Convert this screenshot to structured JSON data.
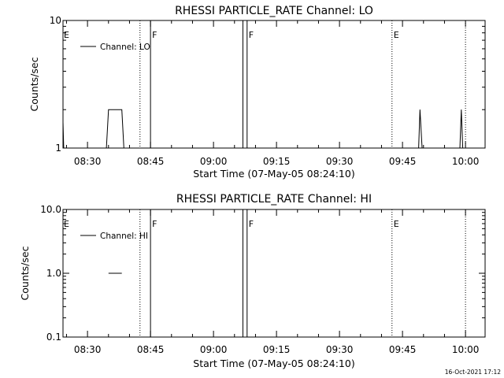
{
  "chart_data": [
    {
      "type": "line",
      "title": "RHESSI PARTICLE_RATE Channel: LO",
      "xlabel": "Start Time (07-May-05 08:24:10)",
      "ylabel": "Counts/sec",
      "y_scale": "log",
      "ylim": [
        1,
        10
      ],
      "xlim": [
        "08:24:10",
        "10:04:40"
      ],
      "yticks": [
        {
          "value": 1,
          "label": "1"
        },
        {
          "value": 10,
          "label": "10"
        }
      ],
      "xticks": [
        {
          "value": "08:30",
          "label": "08:30"
        },
        {
          "value": "08:45",
          "label": "08:45"
        },
        {
          "value": "09:00",
          "label": "09:00"
        },
        {
          "value": "09:15",
          "label": "09:15"
        },
        {
          "value": "09:30",
          "label": "09:30"
        },
        {
          "value": "09:45",
          "label": "09:45"
        },
        {
          "value": "10:00",
          "label": "10:00"
        }
      ],
      "legend": {
        "placement": "top-left",
        "entries": [
          "Channel: LO"
        ]
      },
      "series": [
        {
          "name": "Channel: LO",
          "segments": [
            [
              [
                "08:24:10",
                1.6
              ],
              [
                "08:24:20",
                1
              ]
            ],
            [
              [
                "08:34:30",
                1
              ],
              [
                "08:35:00",
                2
              ],
              [
                "08:38:10",
                2
              ],
              [
                "08:38:40",
                1
              ]
            ],
            [
              [
                "09:48:50",
                1
              ],
              [
                "09:49:10",
                2
              ],
              [
                "09:49:40",
                1
              ]
            ],
            [
              [
                "09:58:40",
                1
              ],
              [
                "09:59:00",
                2
              ],
              [
                "09:59:20",
                1
              ]
            ]
          ]
        }
      ],
      "flag_lines": [
        {
          "time": "08:42:30",
          "style": "dotted",
          "label": ""
        },
        {
          "time": "08:45:00",
          "style": "solid",
          "label": "F"
        },
        {
          "time": "09:07:00",
          "style": "solid",
          "label": ""
        },
        {
          "time": "09:08:00",
          "style": "solid",
          "label": "F"
        },
        {
          "time": "09:42:30",
          "style": "dotted",
          "label": "E"
        },
        {
          "time": "10:00:00",
          "style": "dotted",
          "label": ""
        }
      ],
      "start_flag": "E",
      "grid": false
    },
    {
      "type": "line",
      "title": "RHESSI PARTICLE_RATE Channel: HI",
      "xlabel": "Start Time (07-May-05 08:24:10)",
      "ylabel": "Counts/sec",
      "y_scale": "log",
      "ylim": [
        0.1,
        10
      ],
      "xlim": [
        "08:24:10",
        "10:04:40"
      ],
      "yticks": [
        {
          "value": 0.1,
          "label": "0.1"
        },
        {
          "value": 1,
          "label": "1.0"
        },
        {
          "value": 10,
          "label": "10.0"
        }
      ],
      "xticks": [
        {
          "value": "08:30",
          "label": "08:30"
        },
        {
          "value": "08:45",
          "label": "08:45"
        },
        {
          "value": "09:00",
          "label": "09:00"
        },
        {
          "value": "09:15",
          "label": "09:15"
        },
        {
          "value": "09:30",
          "label": "09:30"
        },
        {
          "value": "09:45",
          "label": "09:45"
        },
        {
          "value": "10:00",
          "label": "10:00"
        }
      ],
      "legend": {
        "placement": "top-left",
        "entries": [
          "Channel: HI"
        ]
      },
      "series": [
        {
          "name": "Channel: HI",
          "segments": [
            [
              [
                "08:35:00",
                1
              ],
              [
                "08:38:10",
                1
              ]
            ]
          ]
        }
      ],
      "flag_lines": [
        {
          "time": "08:42:30",
          "style": "dotted",
          "label": ""
        },
        {
          "time": "08:45:00",
          "style": "solid",
          "label": "F"
        },
        {
          "time": "09:07:00",
          "style": "solid",
          "label": ""
        },
        {
          "time": "09:08:00",
          "style": "solid",
          "label": "F"
        },
        {
          "time": "09:42:30",
          "style": "dotted",
          "label": "E"
        },
        {
          "time": "10:00:00",
          "style": "dotted",
          "label": ""
        }
      ],
      "start_flag": "E",
      "grid": false
    }
  ],
  "footer": {
    "timestamp": "16-Oct-2021 17:12"
  }
}
